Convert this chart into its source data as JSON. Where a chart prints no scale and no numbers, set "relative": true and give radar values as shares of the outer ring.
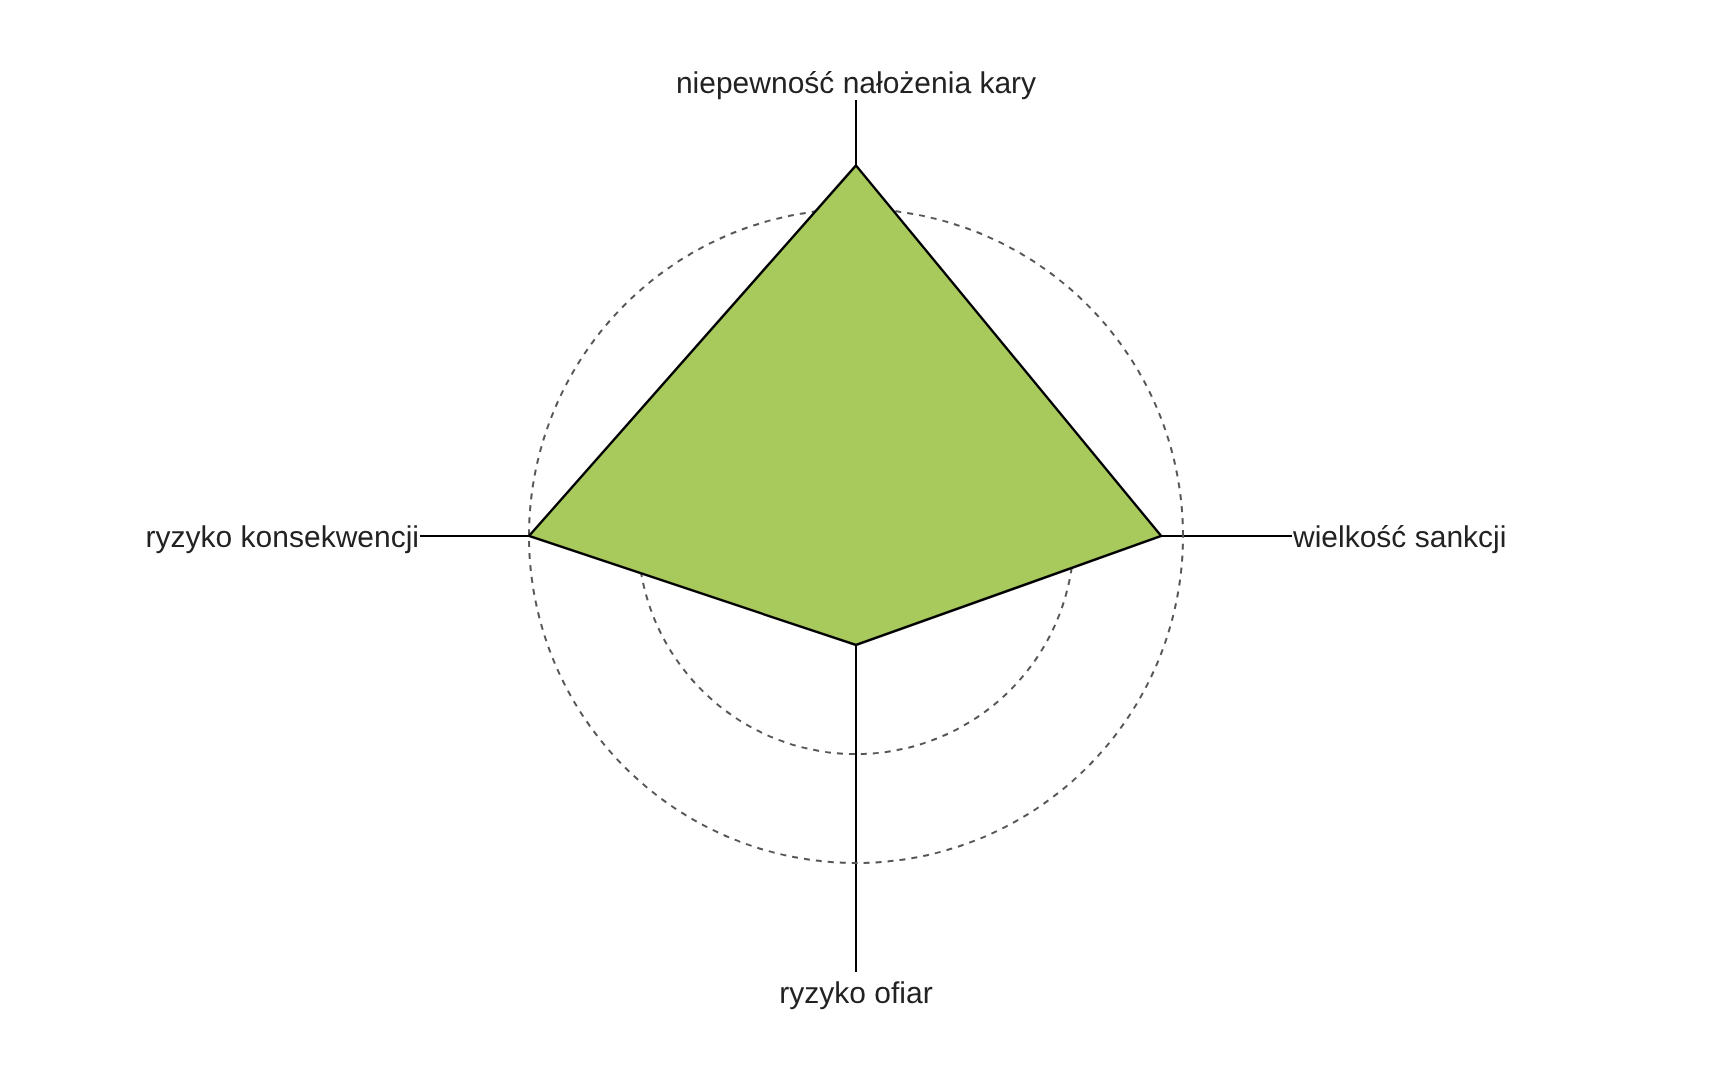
{
  "chart_data": {
    "type": "radar",
    "relative": true,
    "grid": true,
    "categories": [
      "niepewność nałożenia kary",
      "wielkość sankcji",
      "ryzyko ofiar",
      "ryzyko konsekwencji"
    ],
    "series": [
      {
        "color": "#a8c95c",
        "values": [
          0.85,
          0.7,
          0.25,
          0.75
        ]
      }
    ]
  }
}
